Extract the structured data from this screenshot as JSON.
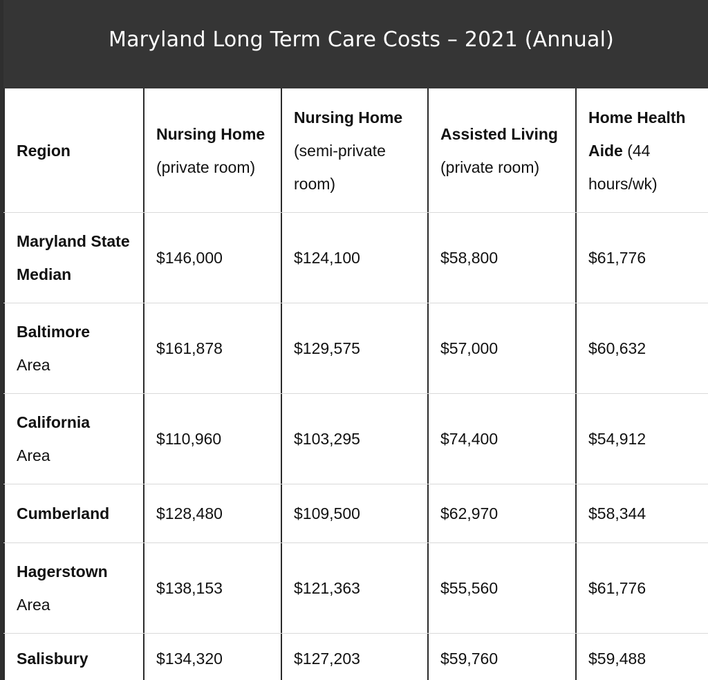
{
  "title": "Maryland Long Term Care Costs – 2021 (Annual)",
  "columns": [
    {
      "bold": "Region",
      "rest": ""
    },
    {
      "bold": "Nursing Home",
      "rest": " (private room)"
    },
    {
      "bold": "Nursing Home",
      "rest": " (semi-private room)"
    },
    {
      "bold": "Assisted Living",
      "rest": " (private room)"
    },
    {
      "bold": "Home Health Aide",
      "rest": " (44 hours/wk)"
    }
  ],
  "rows": [
    {
      "region_bold": "Maryland State Median",
      "region_rest": "",
      "values": [
        "$146,000",
        "$124,100",
        "$58,800",
        "$61,776"
      ]
    },
    {
      "region_bold": "Baltimore",
      "region_rest": "Area",
      "values": [
        "$161,878",
        "$129,575",
        "$57,000",
        "$60,632"
      ]
    },
    {
      "region_bold": "California",
      "region_rest": "Area",
      "values": [
        "$110,960",
        "$103,295",
        "$74,400",
        "$54,912"
      ]
    },
    {
      "region_bold": "Cumberland",
      "region_rest": "",
      "values": [
        "$128,480",
        "$109,500",
        "$62,970",
        "$58,344"
      ]
    },
    {
      "region_bold": "Hagerstown",
      "region_rest": "Area",
      "values": [
        "$138,153",
        "$121,363",
        "$55,560",
        "$61,776"
      ]
    },
    {
      "region_bold": "Salisbury",
      "region_rest": "",
      "values": [
        "$134,320",
        "$127,203",
        "$59,760",
        "$59,488"
      ]
    }
  ]
}
